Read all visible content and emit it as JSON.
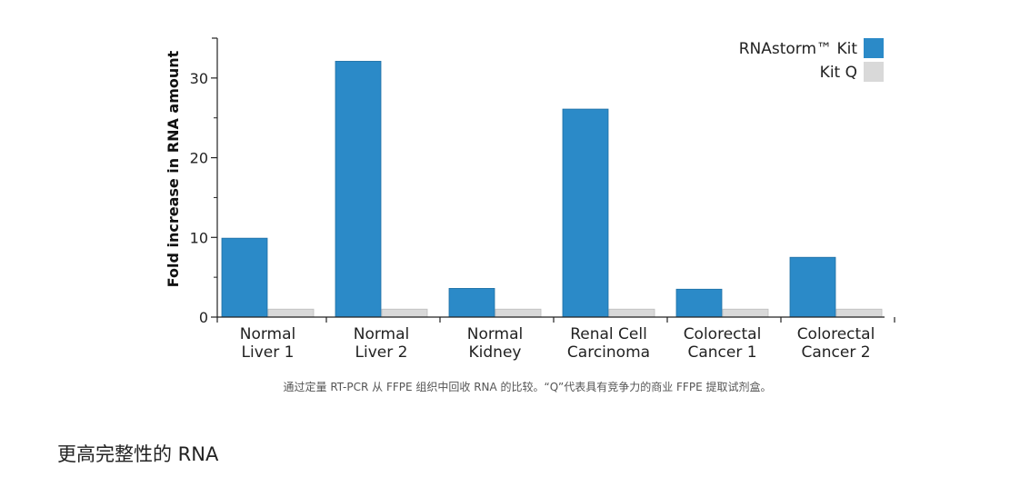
{
  "chart_data": {
    "type": "bar",
    "categories": [
      [
        "Normal",
        "Liver 1"
      ],
      [
        "Normal",
        "Liver 2"
      ],
      [
        "Normal",
        "Kidney"
      ],
      [
        "Renal Cell",
        "Carcinoma"
      ],
      [
        "Colorectal",
        "Cancer 1"
      ],
      [
        "Colorectal",
        "Cancer 2"
      ]
    ],
    "series": [
      {
        "name": "RNAstorm™ Kit",
        "values": [
          9.9,
          32.1,
          3.6,
          26.1,
          3.5,
          7.5
        ],
        "color": "#2b8ac8"
      },
      {
        "name": "Kit Q",
        "values": [
          1.0,
          1.0,
          1.0,
          1.0,
          1.0,
          1.0
        ],
        "color": "#d9d9d9"
      }
    ],
    "ylabel": "Fold increase in RNA amount",
    "xlabel": "",
    "title": "",
    "ylim": [
      0,
      35
    ],
    "yticks": [
      0,
      10,
      20,
      30
    ],
    "legend_position": "top-right",
    "grid": false
  },
  "caption": "通过定量 RT-PCR 从 FFPE 组织中回收 RNA 的比较。“Q”代表具有竞争力的商业 FFPE 提取试剂盒。",
  "section_title": "更高完整性的 RNA"
}
